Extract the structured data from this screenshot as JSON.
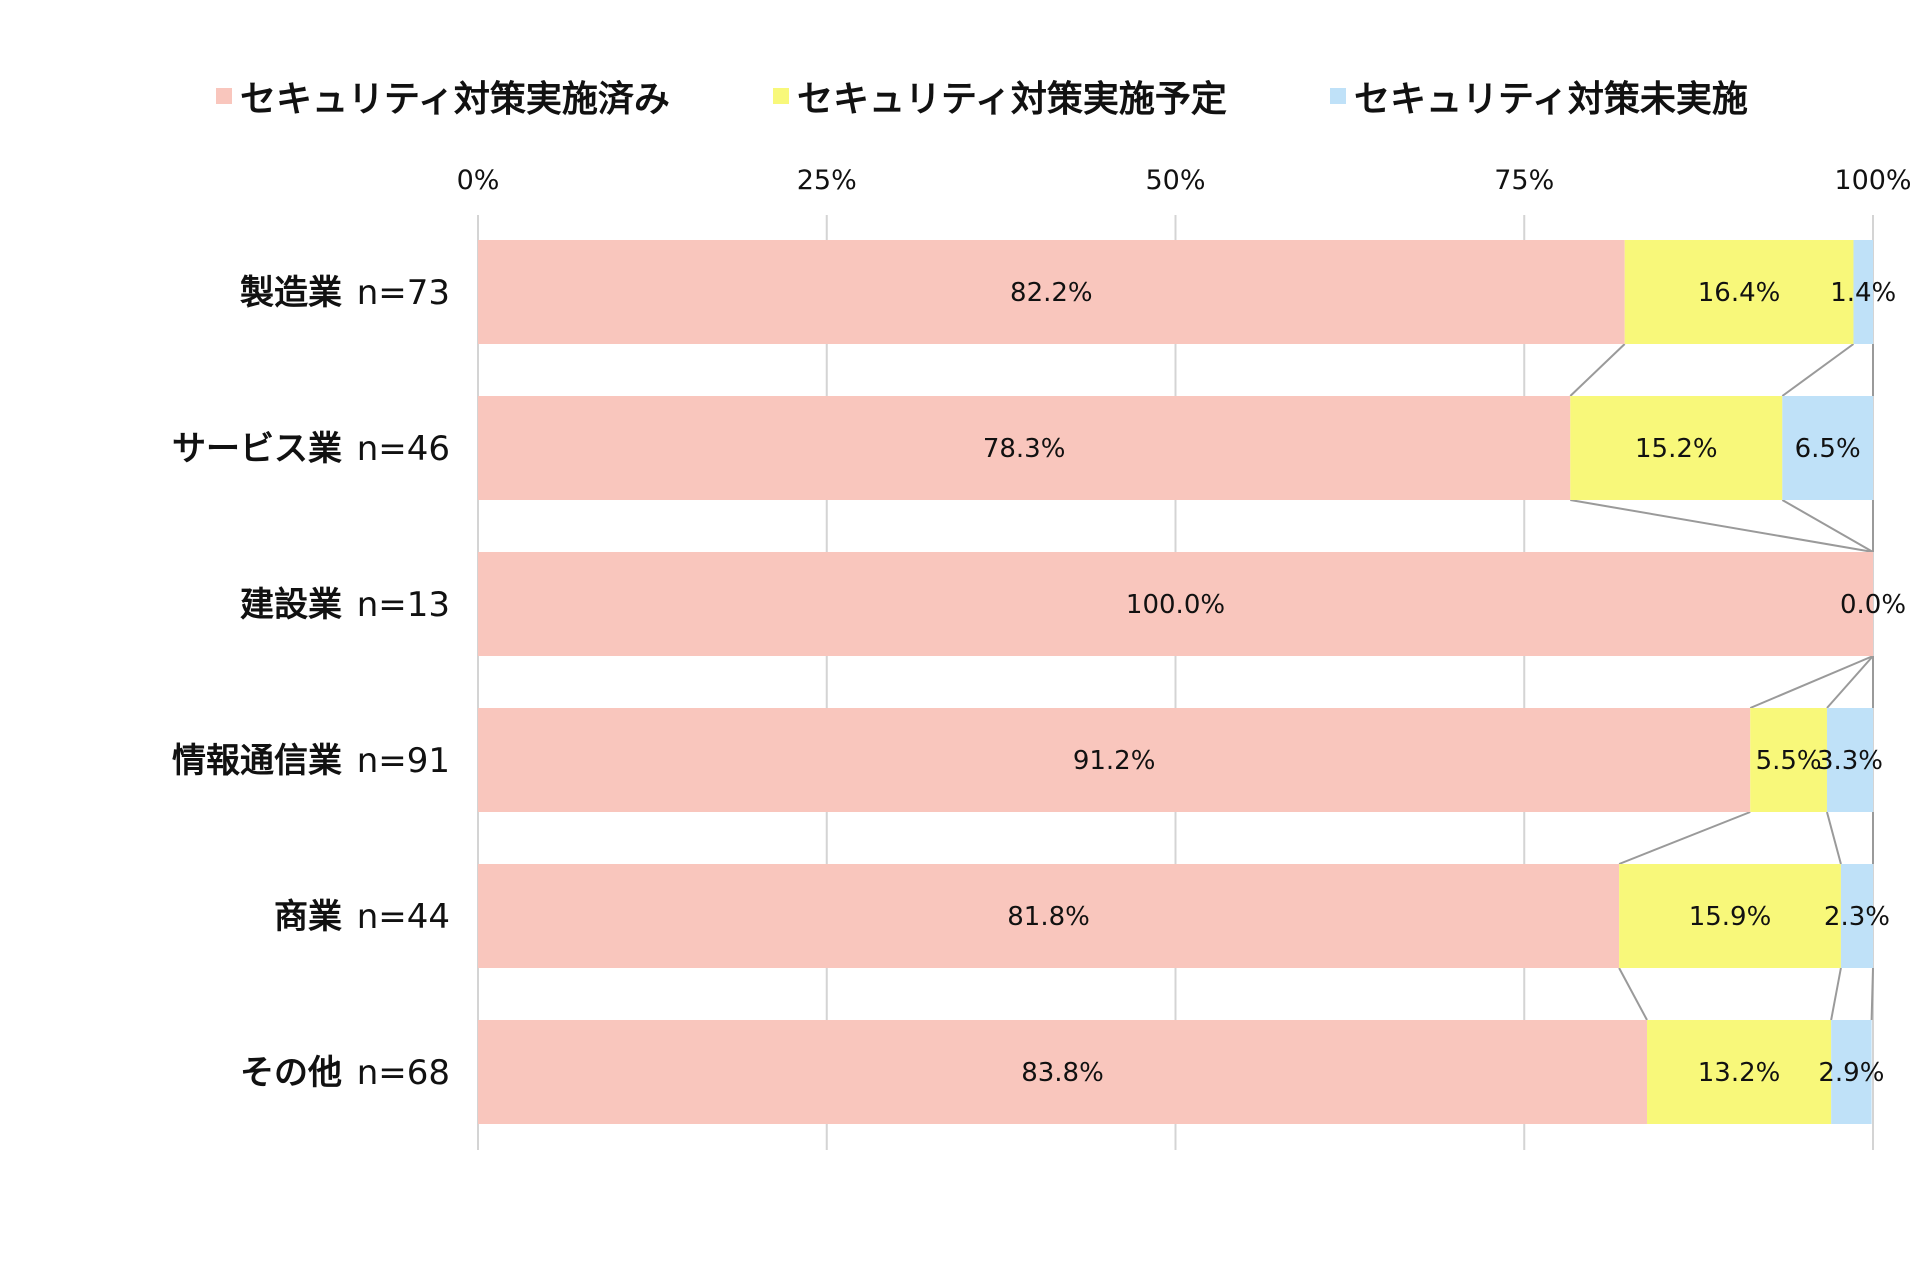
{
  "chart_data": {
    "type": "bar",
    "orientation": "horizontal",
    "stacked": "percent",
    "xlim": [
      0,
      100
    ],
    "ticks": [
      "0%",
      "25%",
      "50%",
      "75%",
      "100%"
    ],
    "grid": true,
    "legend_position": "top",
    "categories": [
      "製造業",
      "サービス業",
      "建設業",
      "情報通信業",
      "商業",
      "その他"
    ],
    "sample_sizes": [
      "n=73",
      "n=46",
      "n=13",
      "n=91",
      "n=44",
      "n=68"
    ],
    "series": [
      {
        "name": "セキュリティ対策実施済み",
        "color": "#f9c6bd",
        "values": [
          82.2,
          78.3,
          100.0,
          91.2,
          81.8,
          83.8
        ],
        "labels": [
          "82.2%",
          "78.3%",
          "100.0%",
          "91.2%",
          "81.8%",
          "83.8%"
        ]
      },
      {
        "name": "セキュリティ対策実施予定",
        "color": "#f8f87a",
        "values": [
          16.4,
          15.2,
          0.0,
          5.5,
          15.9,
          13.2
        ],
        "labels": [
          "16.4%",
          "15.2%",
          "",
          "5.5%",
          "15.9%",
          "13.2%"
        ]
      },
      {
        "name": "セキュリティ対策未実施",
        "color": "#bfe1f8",
        "values": [
          1.4,
          6.5,
          0.0,
          3.3,
          2.3,
          2.9
        ],
        "labels": [
          "1.4%",
          "6.5%",
          "0.0%",
          "3.3%",
          "2.3%",
          "2.9%"
        ]
      }
    ],
    "series_lines": true
  }
}
